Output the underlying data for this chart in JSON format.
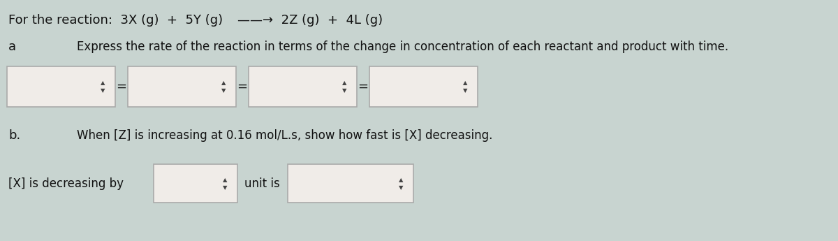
{
  "bg_color": "#c8d4d0",
  "title_line": "For the reaction:  3X (g)  +  5Y (g)  →→  2Z (g)  +  4L (g)",
  "part_a_label": "a",
  "part_a_text": "Express the rate of the reaction in terms of the change in concentration of each reactant and product with time.",
  "part_b_label": "b.",
  "part_b_text": "When [Z] is increasing at 0.16 mol/L.s, show how fast is [X] decreasing.",
  "part_b_answer_label": "[X] is decreasing by",
  "unit_label": "unit is",
  "box_fill": "#f0ece8",
  "box_edge": "#aaaaaa",
  "text_color": "#111111",
  "equals_sign": "=",
  "spinner_symbol": "◆◆",
  "spinner_up": "▲",
  "spinner_down": "▼"
}
